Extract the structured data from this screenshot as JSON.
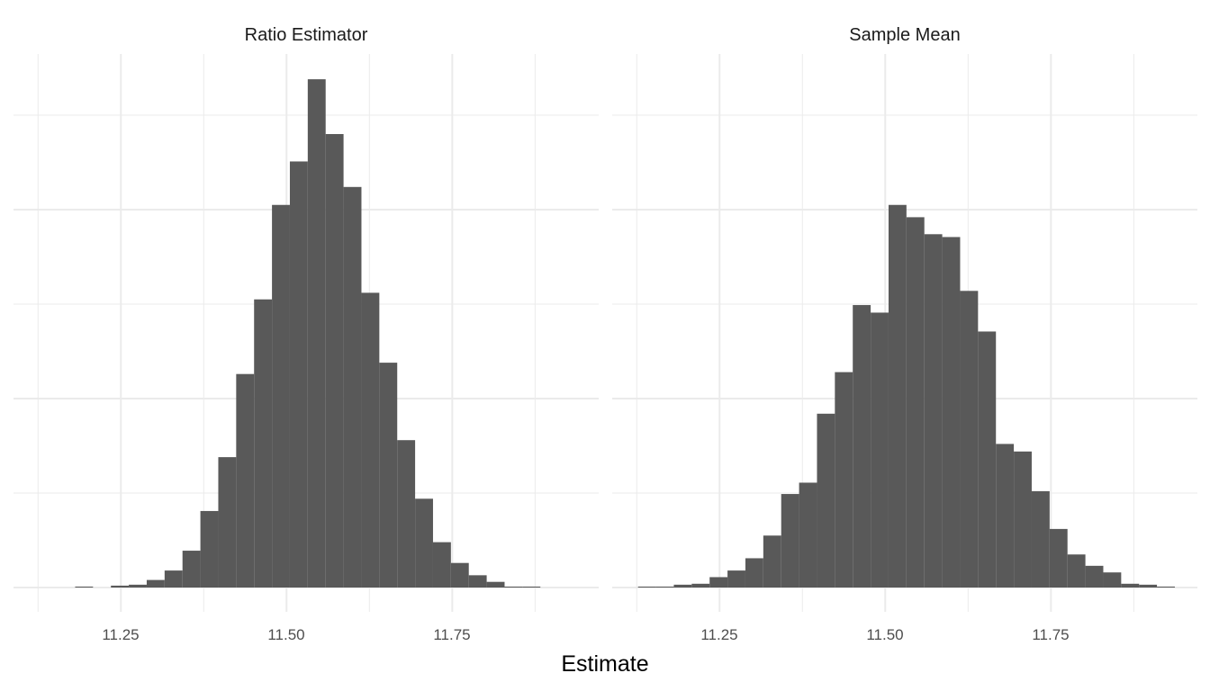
{
  "chart_data": {
    "type": "bar",
    "subtype": "histogram",
    "xlabel": "Estimate",
    "ylabel": "",
    "xlim": [
      11.088,
      11.971
    ],
    "ylim": [
      0,
      565
    ],
    "bin_start": 11.127,
    "bin_width": 0.027,
    "x_ticks": [
      11.25,
      11.5,
      11.75
    ],
    "x_tick_labels": [
      "11.25",
      "11.50",
      "11.75"
    ],
    "y_grid": [
      0,
      100,
      200,
      300,
      400,
      500
    ],
    "y_axis_labels_shown": false,
    "grid": true,
    "bar_color": "#595959",
    "panels": [
      {
        "title": "Ratio Estimator",
        "values": [
          0,
          0,
          1,
          0,
          2,
          3,
          8,
          18,
          39,
          81,
          138,
          226,
          305,
          405,
          451,
          538,
          480,
          424,
          312,
          238,
          156,
          94,
          48,
          26,
          13,
          6,
          1,
          1,
          0,
          0
        ]
      },
      {
        "title": "Sample Mean",
        "values": [
          1,
          1,
          3,
          4,
          11,
          18,
          31,
          55,
          99,
          111,
          184,
          228,
          299,
          291,
          405,
          392,
          374,
          371,
          314,
          271,
          152,
          144,
          102,
          62,
          35,
          23,
          16,
          4,
          3,
          1
        ]
      }
    ]
  }
}
